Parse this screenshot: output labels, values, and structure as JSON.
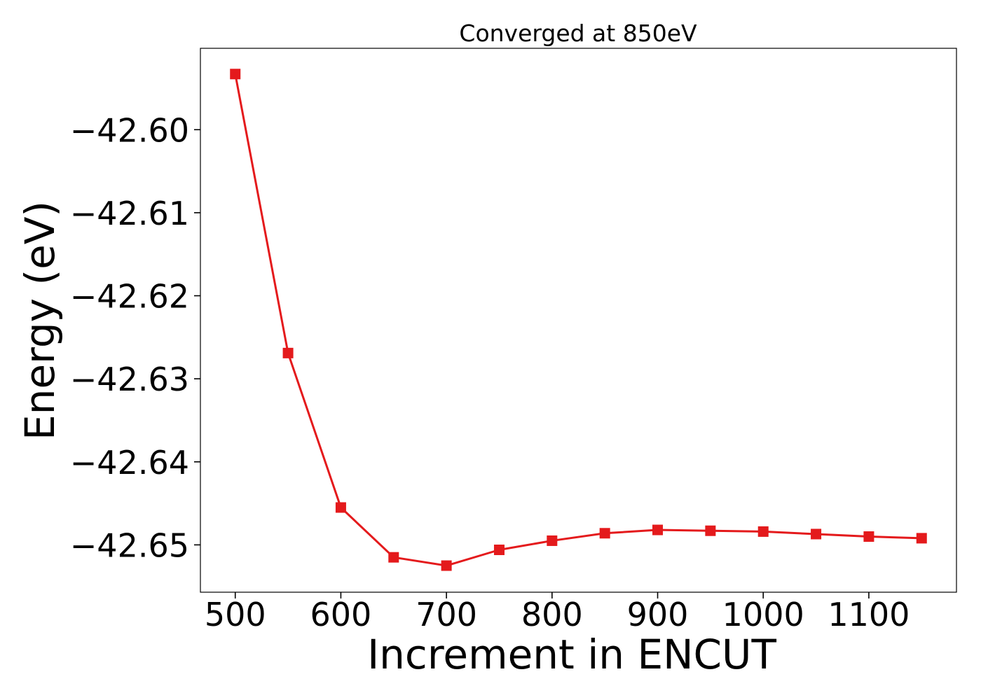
{
  "chart_data": {
    "type": "line",
    "title": "Converged at 850eV",
    "xlabel": "Increment in ENCUT",
    "ylabel": "Energy (eV)",
    "xlim": [
      467,
      1150
    ],
    "ylim": [
      -42.6557,
      -42.5902
    ],
    "x_ticks": [
      500,
      600,
      700,
      800,
      900,
      1000,
      1100
    ],
    "x_tick_labels": [
      "500",
      "600",
      "700",
      "800",
      "900",
      "1000",
      "1100"
    ],
    "y_ticks": [
      -42.6,
      -42.61,
      -42.62,
      -42.63,
      -42.64,
      -42.65
    ],
    "y_tick_labels": [
      "−42.60",
      "−42.61",
      "−42.62",
      "−42.63",
      "−42.64",
      "−42.65"
    ],
    "grid": false,
    "series": [
      {
        "color": "#e41a1c",
        "marker": "square",
        "x": [
          500,
          550,
          600,
          650,
          700,
          750,
          800,
          850,
          900,
          950,
          1000,
          1050,
          1100,
          1150
        ],
        "y": [
          -42.5933,
          -42.6269,
          -42.6455,
          -42.6515,
          -42.6525,
          -42.6506,
          -42.6495,
          -42.6486,
          -42.6482,
          -42.6483,
          -42.6484,
          -42.6487,
          -42.649,
          -42.6492
        ]
      }
    ]
  }
}
